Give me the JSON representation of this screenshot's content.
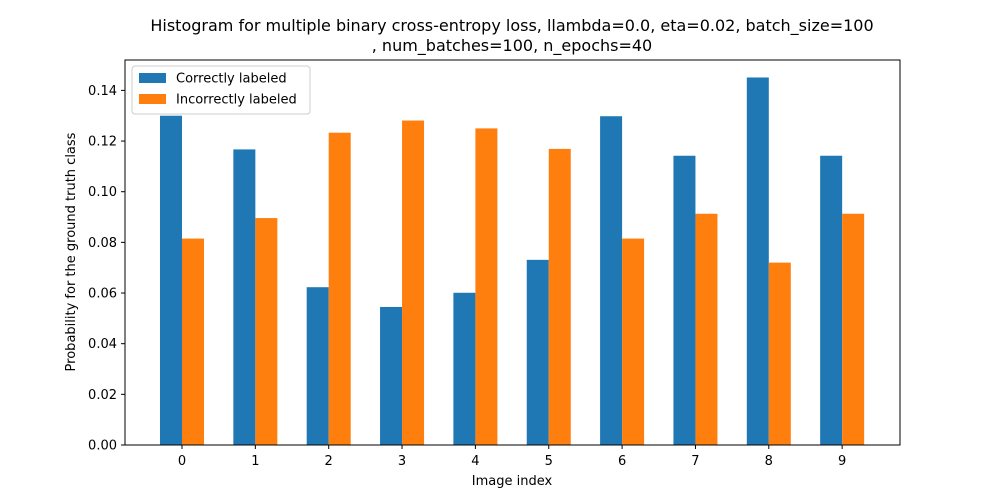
{
  "chart_data": {
    "type": "bar",
    "title_line1": "Histogram for multiple binary cross-entropy loss, llambda=0.0, eta=0.02, batch_size=100",
    "title_line2": ", num_batches=100, n_epochs=40",
    "xlabel": "Image index",
    "ylabel": "Probability for the ground truth class",
    "categories": [
      "0",
      "1",
      "2",
      "3",
      "4",
      "5",
      "6",
      "7",
      "8",
      "9"
    ],
    "ylim": [
      0,
      0.152
    ],
    "yticks": [
      "0.00",
      "0.02",
      "0.04",
      "0.06",
      "0.08",
      "0.10",
      "0.12",
      "0.14"
    ],
    "grid": false,
    "legend_position": "top-left",
    "series": [
      {
        "name": "Correctly labeled",
        "color": "#1f77b4",
        "values": [
          0.13,
          0.1167,
          0.0623,
          0.0545,
          0.0601,
          0.0731,
          0.1298,
          0.1142,
          0.1451,
          0.1142
        ]
      },
      {
        "name": "Incorrectly labeled",
        "color": "#ff7f0e",
        "values": [
          0.0815,
          0.0896,
          0.1233,
          0.1281,
          0.125,
          0.1169,
          0.0815,
          0.0913,
          0.072,
          0.0913
        ]
      }
    ]
  }
}
